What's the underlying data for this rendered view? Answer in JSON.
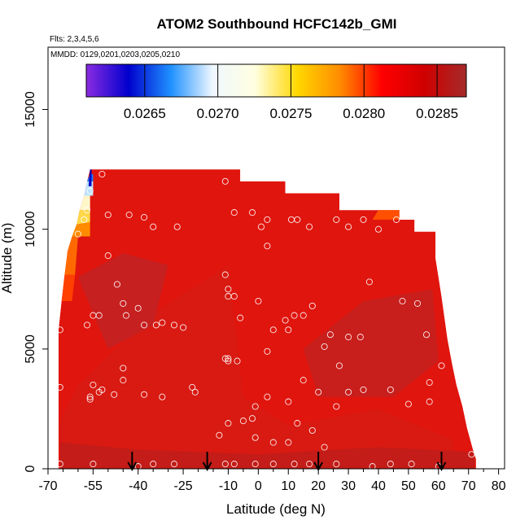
{
  "chart_data": {
    "type": "heatmap",
    "title": "ATOM2 Southbound HCFC142b_GMI",
    "subtitle_flights": "Flts: 2,3,4,5,6",
    "subtitle_dates": "MMDD: 0129,0201,0203,0205,0210",
    "xlabel": "Latitude (deg N)",
    "ylabel": "Altitude (m)",
    "xlim": [
      -70,
      82
    ],
    "ylim": [
      0,
      17600
    ],
    "x_ticks": [
      -70,
      -55,
      -40,
      -25,
      -10,
      0,
      10,
      20,
      30,
      40,
      50,
      60,
      70,
      80
    ],
    "x_minor_ticks": [
      -65,
      -60,
      -50,
      -45,
      -35,
      -30,
      -20,
      -15,
      -5,
      5,
      15,
      25,
      35,
      45,
      55,
      65,
      75
    ],
    "y_ticks": [
      0,
      5000,
      10000,
      15000
    ],
    "colorbar": {
      "min": 0.0261,
      "max": 0.0287,
      "ticks": [
        0.0265,
        0.027,
        0.0275,
        0.028,
        0.0285
      ],
      "tick_labels": [
        "0.0265",
        "0.0270",
        "0.0275",
        "0.0280",
        "0.0285"
      ],
      "colors": [
        "#8a2be2",
        "#0000cd",
        "#1e90ff",
        "#f0f8ff",
        "#ffffe0",
        "#ffd700",
        "#ff8c00",
        "#ff0000",
        "#d00000",
        "#a52a2a"
      ]
    },
    "arrows_latitude": [
      -42,
      -17,
      20,
      61
    ],
    "curtain_outline": [
      [
        -66.5,
        200
      ],
      [
        -66.5,
        5800
      ],
      [
        -65.5,
        7000
      ],
      [
        -64.5,
        8100
      ],
      [
        -63.5,
        9100
      ],
      [
        -62,
        9700
      ],
      [
        -60.5,
        10200
      ],
      [
        -59.5,
        10800
      ],
      [
        -58,
        11400
      ],
      [
        -57,
        12000
      ],
      [
        -56,
        12500
      ],
      [
        -6,
        12500
      ],
      [
        -6,
        12000
      ],
      [
        9,
        12000
      ],
      [
        9,
        11500
      ],
      [
        27,
        11500
      ],
      [
        27,
        10800
      ],
      [
        47,
        10800
      ],
      [
        47,
        10400
      ],
      [
        52,
        10400
      ],
      [
        52,
        9900
      ],
      [
        59,
        9900
      ],
      [
        59,
        8800
      ],
      [
        60,
        8000
      ],
      [
        61,
        7200
      ],
      [
        62,
        6300
      ],
      [
        63,
        5400
      ],
      [
        64.5,
        4400
      ],
      [
        66,
        3500
      ],
      [
        68,
        2600
      ],
      [
        69.5,
        1700
      ],
      [
        71.5,
        800
      ],
      [
        72.5,
        400
      ],
      [
        72.5,
        0
      ],
      [
        -66.5,
        0
      ]
    ],
    "patches": [
      {
        "name": "low-red-base",
        "color": "#d81a12",
        "polygon": [
          [
            -60,
            3500
          ],
          [
            -35,
            6500
          ],
          [
            -10,
            8500
          ],
          [
            -5,
            3000
          ],
          [
            10,
            1800
          ],
          [
            40,
            2500
          ],
          [
            65,
            1200
          ],
          [
            65,
            0
          ],
          [
            -66,
            0
          ],
          [
            -66,
            2000
          ]
        ]
      },
      {
        "name": "lower-layer",
        "color": "#c41c18",
        "polygon": [
          [
            -66,
            0
          ],
          [
            72,
            0
          ],
          [
            72,
            700
          ],
          [
            40,
            900
          ],
          [
            0,
            600
          ],
          [
            -40,
            800
          ],
          [
            -66,
            1100
          ]
        ]
      },
      {
        "name": "mid-dark-left",
        "color": "#c62020",
        "polygon": [
          [
            -60,
            8000
          ],
          [
            -45,
            9000
          ],
          [
            -30,
            8500
          ],
          [
            -35,
            6000
          ],
          [
            -50,
            5000
          ]
        ]
      },
      {
        "name": "mid-dark-right",
        "color": "#c81e1c",
        "polygon": [
          [
            20,
            3000
          ],
          [
            45,
            3000
          ],
          [
            60,
            4500
          ],
          [
            58,
            7500
          ],
          [
            35,
            7000
          ],
          [
            15,
            5000
          ]
        ]
      },
      {
        "name": "orange-edge-1",
        "color": "#ff8c00",
        "polygon": [
          [
            -62,
            9700
          ],
          [
            -56,
            9700
          ],
          [
            -56,
            10300
          ],
          [
            -60.5,
            10200
          ]
        ]
      },
      {
        "name": "orange-edge-2",
        "color": "#ff6a00",
        "polygon": [
          [
            -64.5,
            8100
          ],
          [
            -61,
            8100
          ],
          [
            -60,
            9700
          ],
          [
            -62,
            9700
          ],
          [
            -63.5,
            9100
          ]
        ]
      },
      {
        "name": "orange-edge-3",
        "color": "#ff4000",
        "polygon": [
          [
            -65.5,
            7000
          ],
          [
            -62,
            7000
          ],
          [
            -61,
            8100
          ],
          [
            -64.5,
            8100
          ]
        ]
      },
      {
        "name": "orange-top-right",
        "color": "#ff5000",
        "polygon": [
          [
            38,
            10400
          ],
          [
            47,
            10400
          ],
          [
            47,
            10800
          ],
          [
            40,
            10800
          ]
        ]
      },
      {
        "name": "yellow-patch",
        "color": "#ffd84a",
        "polygon": [
          [
            -60.5,
            10200
          ],
          [
            -56,
            10300
          ],
          [
            -56,
            10800
          ],
          [
            -59.5,
            10800
          ]
        ]
      },
      {
        "name": "cream-patch",
        "color": "#fff6c8",
        "polygon": [
          [
            -59.5,
            10800
          ],
          [
            -56,
            10800
          ],
          [
            -56,
            11400
          ],
          [
            -58,
            11400
          ]
        ]
      },
      {
        "name": "pale-blue-patch",
        "color": "#bfe4ff",
        "polygon": [
          [
            -58,
            11400
          ],
          [
            -55,
            11400
          ],
          [
            -55,
            12000
          ],
          [
            -57,
            12000
          ]
        ]
      },
      {
        "name": "blue-patch",
        "color": "#1e7cff",
        "polygon": [
          [
            -57,
            12000
          ],
          [
            -55,
            12000
          ],
          [
            -55,
            12300
          ],
          [
            -56,
            12300
          ]
        ]
      },
      {
        "name": "dark-blue-patch",
        "color": "#0000c0",
        "polygon": [
          [
            -56.5,
            11800
          ],
          [
            -55.5,
            11800
          ],
          [
            -55.5,
            12500
          ],
          [
            -56,
            12500
          ]
        ]
      }
    ],
    "sample_points": [
      [
        -66,
        5800
      ],
      [
        -66,
        3400
      ],
      [
        -66,
        200
      ],
      [
        -60,
        9800
      ],
      [
        -57,
        10800
      ],
      [
        -56,
        11600
      ],
      [
        -52,
        12300
      ],
      [
        -58,
        10400
      ],
      [
        -50,
        10600
      ],
      [
        -43,
        10600
      ],
      [
        -38,
        10500
      ],
      [
        -35,
        10100
      ],
      [
        -27,
        10100
      ],
      [
        -11,
        12000
      ],
      [
        -8,
        10700
      ],
      [
        -2,
        10700
      ],
      [
        1,
        10100
      ],
      [
        3,
        10400
      ],
      [
        11,
        10400
      ],
      [
        13,
        10400
      ],
      [
        17,
        10100
      ],
      [
        26,
        10400
      ],
      [
        30,
        10100
      ],
      [
        35,
        10400
      ],
      [
        40,
        10000
      ],
      [
        46,
        10400
      ],
      [
        -50,
        8900
      ],
      [
        -47,
        7700
      ],
      [
        -45,
        6900
      ],
      [
        -44,
        6400
      ],
      [
        -40,
        6700
      ],
      [
        -38,
        6000
      ],
      [
        -34,
        6000
      ],
      [
        -32,
        6100
      ],
      [
        -28,
        6000
      ],
      [
        -25,
        5900
      ],
      [
        -55,
        6400
      ],
      [
        -53,
        6400
      ],
      [
        -57,
        6000
      ],
      [
        -11,
        8100
      ],
      [
        -10,
        7500
      ],
      [
        -10,
        7200
      ],
      [
        -8,
        7200
      ],
      [
        -6,
        6300
      ],
      [
        0,
        7000
      ],
      [
        3,
        9300
      ],
      [
        5,
        5800
      ],
      [
        9,
        6200
      ],
      [
        10,
        5800
      ],
      [
        12,
        6400
      ],
      [
        15,
        6400
      ],
      [
        18,
        6800
      ],
      [
        22,
        5100
      ],
      [
        24,
        5600
      ],
      [
        27,
        4300
      ],
      [
        30,
        5500
      ],
      [
        34,
        5500
      ],
      [
        37,
        7800
      ],
      [
        -11,
        4600
      ],
      [
        -10,
        4600
      ],
      [
        -10,
        4500
      ],
      [
        -7,
        4500
      ],
      [
        3,
        4900
      ],
      [
        -45,
        4200
      ],
      [
        -45,
        3700
      ],
      [
        -55,
        3500
      ],
      [
        -53,
        3200
      ],
      [
        -52,
        3300
      ],
      [
        -56,
        3000
      ],
      [
        -56,
        2900
      ],
      [
        -48,
        3100
      ],
      [
        -38,
        3100
      ],
      [
        -32,
        3000
      ],
      [
        -22,
        3400
      ],
      [
        -21,
        3200
      ],
      [
        3,
        3000
      ],
      [
        10,
        2800
      ],
      [
        15,
        3700
      ],
      [
        20,
        3200
      ],
      [
        26,
        2600
      ],
      [
        30,
        3200
      ],
      [
        35,
        3300
      ],
      [
        44,
        3300
      ],
      [
        48,
        7000
      ],
      [
        53,
        6900
      ],
      [
        56,
        5600
      ],
      [
        57,
        3600
      ],
      [
        57,
        2800
      ],
      [
        50,
        2700
      ],
      [
        61,
        4300
      ],
      [
        -10,
        1900
      ],
      [
        -13,
        1400
      ],
      [
        -5,
        2000
      ],
      [
        -2,
        2100
      ],
      [
        -1,
        2600
      ],
      [
        -1,
        1300
      ],
      [
        5,
        1100
      ],
      [
        10,
        1100
      ],
      [
        13,
        1900
      ],
      [
        18,
        1600
      ],
      [
        22,
        900
      ],
      [
        -55,
        200
      ],
      [
        -40,
        100
      ],
      [
        -35,
        200
      ],
      [
        -28,
        200
      ],
      [
        -11,
        200
      ],
      [
        -8,
        200
      ],
      [
        -1,
        200
      ],
      [
        5,
        200
      ],
      [
        12,
        200
      ],
      [
        17,
        200
      ],
      [
        26,
        200
      ],
      [
        38,
        100
      ],
      [
        44,
        200
      ],
      [
        51,
        200
      ],
      [
        60,
        100
      ],
      [
        71,
        600
      ]
    ]
  }
}
